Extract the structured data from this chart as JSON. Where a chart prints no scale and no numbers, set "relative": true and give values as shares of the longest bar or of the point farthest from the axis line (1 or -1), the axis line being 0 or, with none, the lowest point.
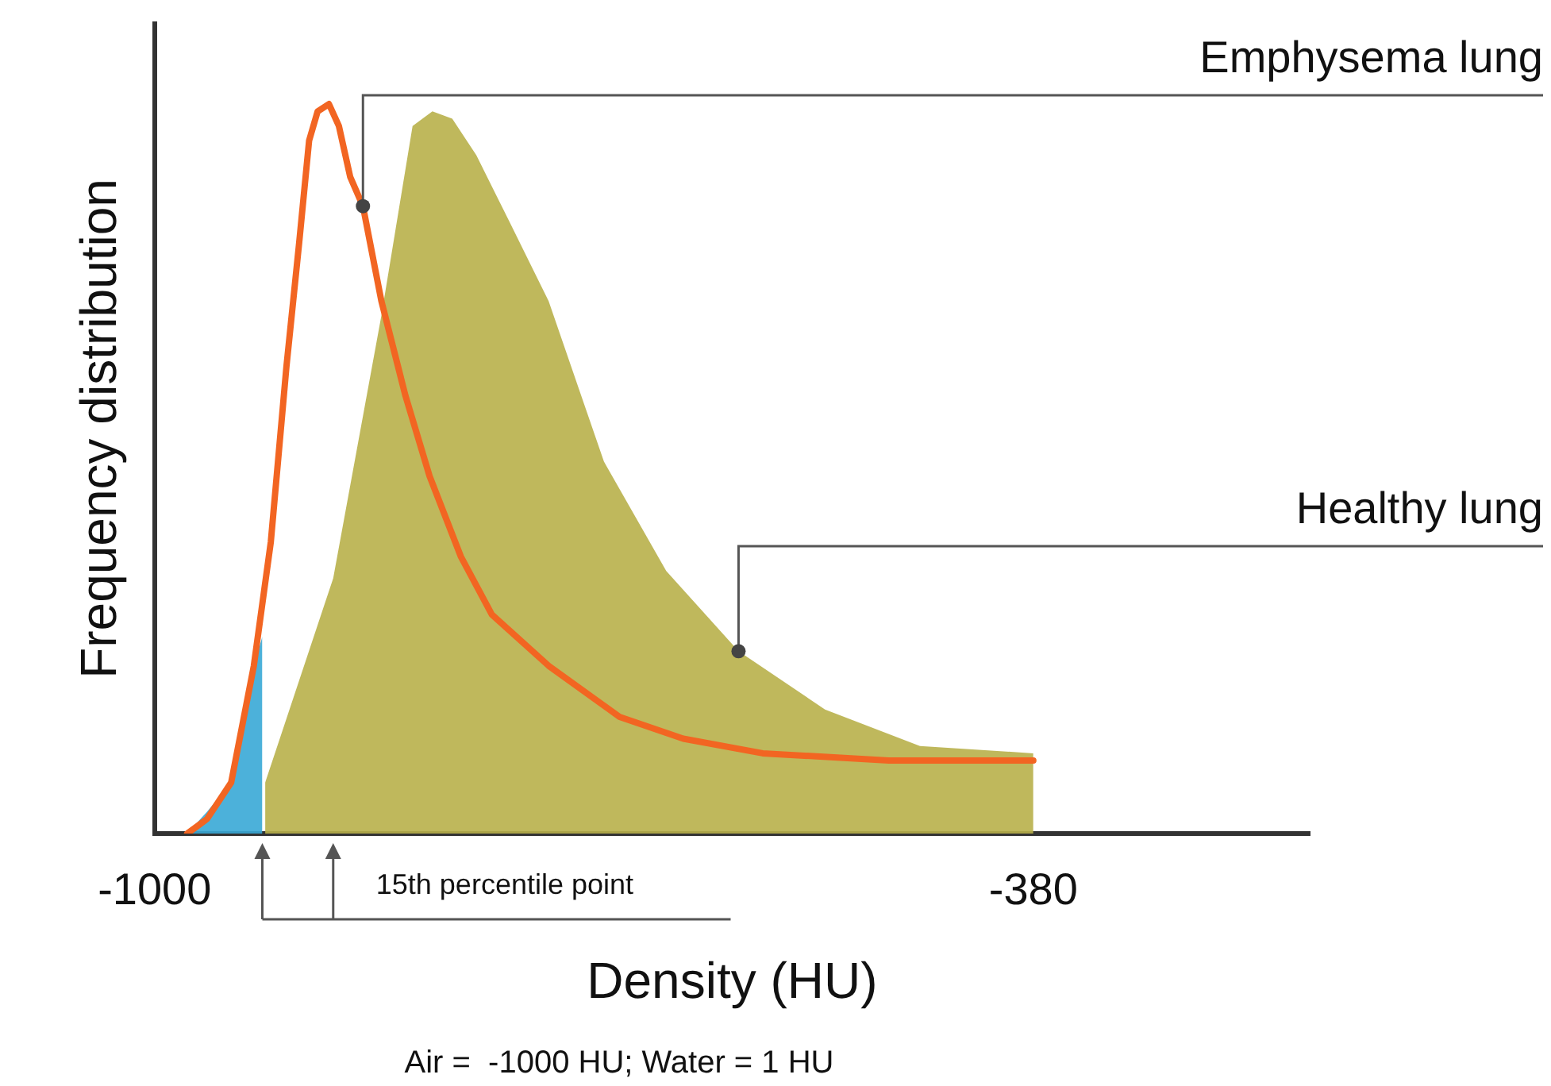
{
  "chart_data": {
    "type": "area",
    "xlabel": "Density (HU)",
    "ylabel": "Frequency distribution",
    "relative": true,
    "xlim": [
      -1000,
      -185
    ],
    "xticks": [
      -1000,
      -380
    ],
    "grid": false,
    "legend": false,
    "series": [
      {
        "type": "area",
        "color": "#38a9d6",
        "x": [
          -977,
          -963,
          -946,
          -930,
          -924
        ],
        "values": [
          0,
          0.03,
          0.07,
          0.23,
          0.27
        ]
      },
      {
        "type": "area",
        "name": "Healthy lung",
        "color": "#b8b04a",
        "x": [
          -922,
          -874,
          -840,
          -818,
          -804,
          -790,
          -773,
          -750,
          -722,
          -683,
          -639,
          -588,
          -527,
          -460,
          -380
        ],
        "values": [
          0.07,
          0.35,
          0.71,
          0.97,
          0.99,
          0.98,
          0.93,
          0.84,
          0.73,
          0.51,
          0.36,
          0.25,
          0.17,
          0.12,
          0.11
        ]
      },
      {
        "type": "line",
        "name": "Emphysema lung",
        "color": "#f26522",
        "x": [
          -977,
          -963,
          -946,
          -930,
          -918,
          -907,
          -898,
          -891,
          -885,
          -877,
          -870,
          -862,
          -853,
          -840,
          -823,
          -806,
          -784,
          -762,
          -722,
          -672,
          -627,
          -571,
          -482,
          -380
        ],
        "values": [
          0,
          0.02,
          0.07,
          0.23,
          0.4,
          0.64,
          0.81,
          0.95,
          0.99,
          1,
          0.97,
          0.9,
          0.86,
          0.73,
          0.6,
          0.49,
          0.38,
          0.3,
          0.23,
          0.16,
          0.13,
          0.11,
          0.1,
          0.1
        ]
      }
    ],
    "annotations": [
      "15th percentile point",
      "Air =  -1000 HU; Water = 1 HU"
    ]
  }
}
